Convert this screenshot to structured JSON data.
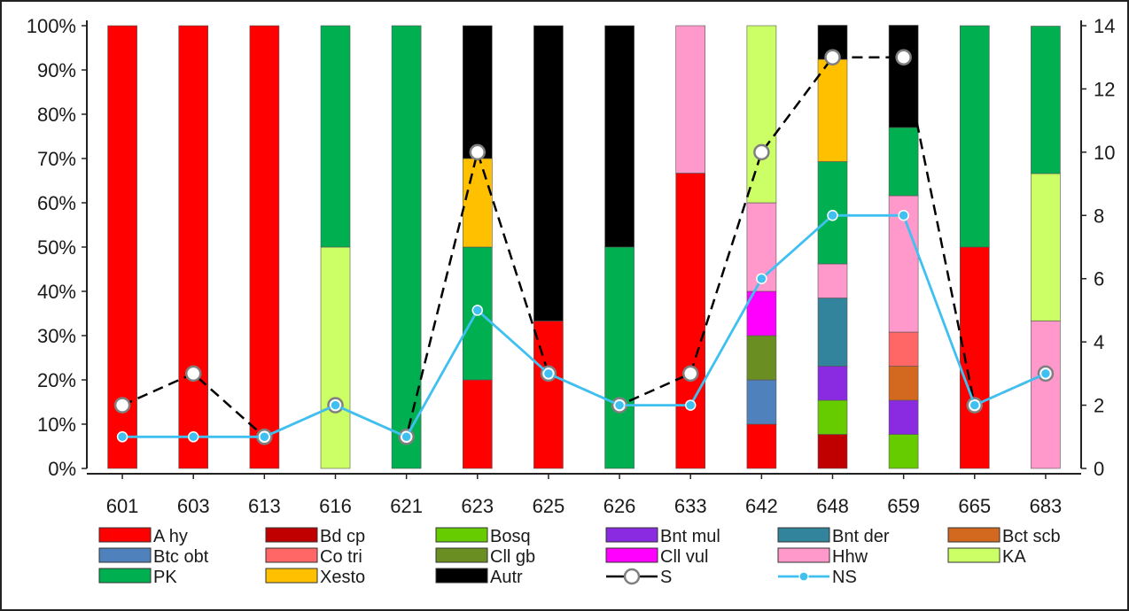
{
  "chart_data": {
    "type": "bar",
    "stacked": true,
    "normalized_percent": true,
    "title": "",
    "xlabel": "",
    "ylabel": "",
    "categories": [
      "601",
      "603",
      "613",
      "616",
      "621",
      "623",
      "625",
      "626",
      "633",
      "642",
      "648",
      "659",
      "665",
      "683"
    ],
    "y_left": {
      "ylim": [
        0,
        100
      ],
      "tick_labels": [
        "0%",
        "10%",
        "20%",
        "30%",
        "40%",
        "50%",
        "60%",
        "70%",
        "80%",
        "90%",
        "100%"
      ]
    },
    "y_right": {
      "ylim": [
        0,
        14
      ],
      "tick_labels": [
        "0",
        "2",
        "4",
        "6",
        "8",
        "10",
        "12",
        "14"
      ]
    },
    "grid": false,
    "legend_position": "bottom",
    "bar_series": [
      {
        "name": "A hy",
        "color": "#ff0000",
        "values": [
          100,
          100,
          100,
          0,
          0,
          20,
          33.3,
          0,
          66.7,
          10,
          0,
          0,
          50,
          0
        ]
      },
      {
        "name": "Bd cp",
        "color": "#c00000",
        "values": [
          0,
          0,
          0,
          0,
          0,
          0,
          0,
          0,
          0,
          0,
          7.7,
          0,
          0,
          0
        ]
      },
      {
        "name": "Bosq",
        "color": "#66cc00",
        "values": [
          0,
          0,
          0,
          0,
          0,
          0,
          0,
          0,
          0,
          0,
          7.7,
          7.7,
          0,
          0
        ]
      },
      {
        "name": "Bnt mul",
        "color": "#8a2be2",
        "values": [
          0,
          0,
          0,
          0,
          0,
          0,
          0,
          0,
          0,
          0,
          7.7,
          7.7,
          0,
          0
        ]
      },
      {
        "name": "Bnt der",
        "color": "#31849b",
        "values": [
          0,
          0,
          0,
          0,
          0,
          0,
          0,
          0,
          0,
          0,
          15.4,
          0,
          0,
          0
        ]
      },
      {
        "name": "Bct scb",
        "color": "#d2691e",
        "values": [
          0,
          0,
          0,
          0,
          0,
          0,
          0,
          0,
          0,
          0,
          0,
          7.7,
          0,
          0
        ]
      },
      {
        "name": "Btc obt",
        "color": "#4f81bd",
        "values": [
          0,
          0,
          0,
          0,
          0,
          0,
          0,
          0,
          0,
          10,
          0,
          0,
          0,
          0
        ]
      },
      {
        "name": "Co tri",
        "color": "#ff6666",
        "values": [
          0,
          0,
          0,
          0,
          0,
          0,
          0,
          0,
          0,
          0,
          0,
          7.7,
          0,
          0
        ]
      },
      {
        "name": "Cll gb",
        "color": "#6b8e23",
        "values": [
          0,
          0,
          0,
          0,
          0,
          0,
          0,
          0,
          0,
          10,
          0,
          0,
          0,
          0
        ]
      },
      {
        "name": "Cll vul",
        "color": "#ff00ff",
        "values": [
          0,
          0,
          0,
          0,
          0,
          0,
          0,
          0,
          0,
          10,
          0,
          0,
          0,
          0
        ]
      },
      {
        "name": "Hhw",
        "color": "#ff99cc",
        "values": [
          0,
          0,
          0,
          0,
          0,
          0,
          0,
          0,
          33.3,
          20,
          7.7,
          30.8,
          0,
          33.3
        ]
      },
      {
        "name": "KA",
        "color": "#ccff66",
        "values": [
          0,
          0,
          0,
          50,
          0,
          0,
          0,
          0,
          0,
          40,
          0,
          0,
          0,
          33.3
        ]
      },
      {
        "name": "PK",
        "color": "#00b050",
        "values": [
          0,
          0,
          0,
          50,
          100,
          30,
          0,
          50,
          0,
          0,
          23.1,
          15.4,
          50,
          33.3
        ]
      },
      {
        "name": "Xesto",
        "color": "#ffc000",
        "values": [
          0,
          0,
          0,
          0,
          0,
          20,
          0,
          0,
          0,
          0,
          23.1,
          0,
          0,
          0
        ]
      },
      {
        "name": "Autr",
        "color": "#000000",
        "values": [
          0,
          0,
          0,
          0,
          0,
          30,
          66.7,
          50,
          0,
          0,
          7.7,
          23.1,
          0,
          0
        ]
      }
    ],
    "line_series": [
      {
        "name": "S",
        "axis": "right",
        "style": "dashed",
        "color": "#000000",
        "marker": "open-circle",
        "values": [
          2,
          3,
          1,
          2,
          1,
          10,
          3,
          2,
          3,
          10,
          13,
          13,
          2,
          3
        ]
      },
      {
        "name": "NS",
        "axis": "right",
        "style": "solid",
        "color": "#40c0f0",
        "marker": "dot",
        "values": [
          1,
          1,
          1,
          2,
          1,
          5,
          3,
          2,
          2,
          6,
          8,
          8,
          2,
          3
        ]
      }
    ]
  }
}
